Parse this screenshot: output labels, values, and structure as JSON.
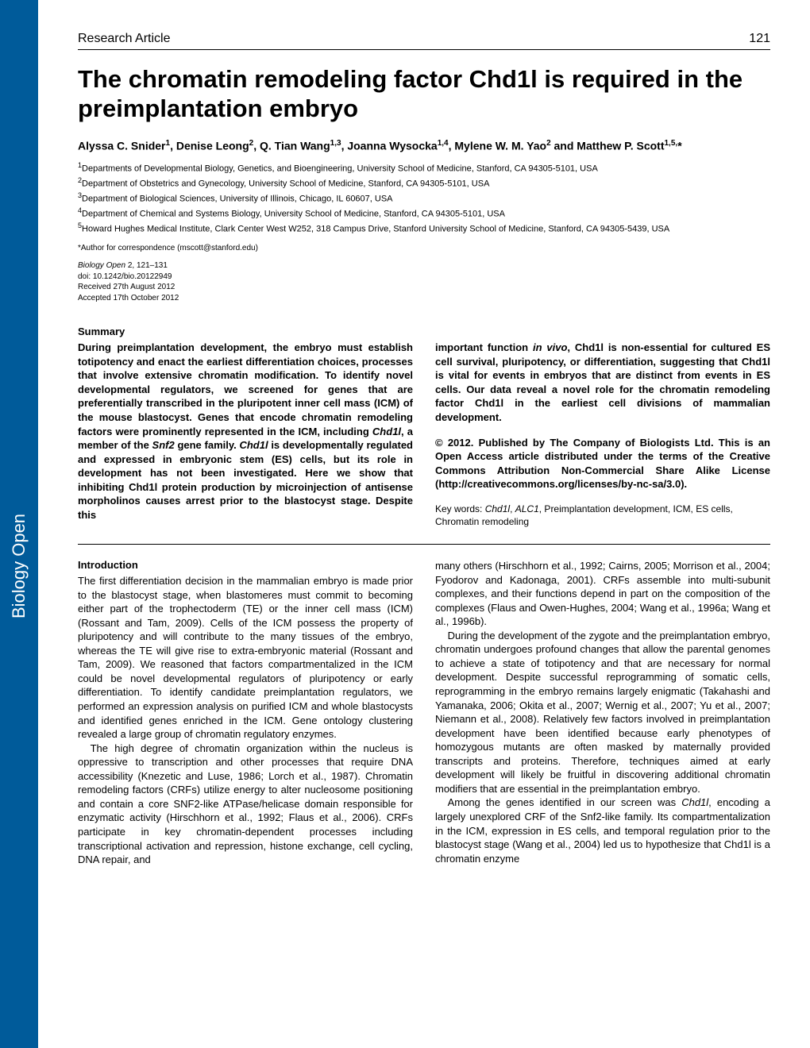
{
  "sidebar": {
    "text": "Biology Open"
  },
  "header": {
    "article_type": "Research Article",
    "page_number": "121"
  },
  "title": "The chromatin remodeling factor Chd1l is required in the preimplantation embryo",
  "authors_html": "Alyssa C. Snider<sup>1</sup>, Denise Leong<sup>2</sup>, Q. Tian Wang<sup>1,3</sup>, Joanna Wysocka<sup>1,4</sup>, Mylene W. M. Yao<sup>2</sup> and Matthew P. Scott<sup>1,5,</sup>*",
  "affiliations_html": "<sup>1</sup>Departments of Developmental Biology, Genetics, and Bioengineering, University School of Medicine, Stanford, CA 94305-5101, USA<br><sup>2</sup>Department of Obstetrics and Gynecology, University School of Medicine, Stanford, CA 94305-5101, USA<br><sup>3</sup>Department of Biological Sciences, University of Illinois, Chicago, IL 60607, USA<br><sup>4</sup>Department of Chemical and Systems Biology, University School of Medicine, Stanford, CA 94305-5101, USA<br><sup>5</sup>Howard Hughes Medical Institute, Clark Center West W252, 318 Campus Drive, Stanford University School of Medicine, Stanford, CA 94305-5439, USA",
  "corresp": "*Author for correspondence (mscott@stanford.edu)",
  "meta_html": "Biology Open <span class=\"noit\">2, 121–131</span><br><span class=\"noit\">doi: 10.1242/bio.20122949</span><br><span class=\"noit\">Received 27th August 2012</span><br><span class=\"noit\">Accepted 17th October 2012</span>",
  "summary": {
    "label": "Summary",
    "left": "During preimplantation development, the embryo must establish totipotency and enact the earliest differentiation choices, processes that involve extensive chromatin modification. To identify novel developmental regulators, we screened for genes that are preferentially transcribed in the pluripotent inner cell mass (ICM) of the mouse blastocyst. Genes that encode chromatin remodeling factors were prominently represented in the ICM, including <span class=\"ital\">Chd1l</span>, a member of the <span class=\"ital\">Snf2</span> gene family. <span class=\"ital\">Chd1l</span> is developmentally regulated and expressed in embryonic stem (ES) cells, but its role in development has not been investigated. Here we show that inhibiting Chd1l protein production by microinjection of antisense morpholinos causes arrest prior to the blastocyst stage. Despite this",
    "right_top": "important function <span class=\"ital\">in vivo</span>, Chd1l is non-essential for cultured ES cell survival, pluripotency, or differentiation, suggesting that Chd1l is vital for events in embryos that are distinct from events in ES cells. Our data reveal a novel role for the chromatin remodeling factor Chd1l in the earliest cell divisions of mammalian development.",
    "copyright": "© 2012. Published by The Company of Biologists Ltd. This is an Open Access article distributed under the terms of the Creative Commons Attribution Non-Commercial Share Alike License (http://creativecommons.org/licenses/by-nc-sa/3.0).",
    "keywords": "Key words: <span class=\"ital\">Chd1l</span>, <span class=\"ital\">ALC1</span>, Preimplantation development, ICM, ES cells, Chromatin remodeling"
  },
  "intro": {
    "label": "Introduction",
    "left_html": "<p>The first differentiation decision in the mammalian embryo is made prior to the blastocyst stage, when blastomeres must commit to becoming either part of the trophectoderm (TE) or the inner cell mass (ICM) (Rossant and Tam, 2009). Cells of the ICM possess the property of pluripotency and will contribute to the many tissues of the embryo, whereas the TE will give rise to extra-embryonic material (Rossant and Tam, 2009). We reasoned that factors compartmentalized in the ICM could be novel developmental regulators of pluripotency or early differentiation. To identify candidate preimplantation regulators, we performed an expression analysis on purified ICM and whole blastocysts and identified genes enriched in the ICM. Gene ontology clustering revealed a large group of chromatin regulatory enzymes.</p><p>The high degree of chromatin organization within the nucleus is oppressive to transcription and other processes that require DNA accessibility (Knezetic and Luse, 1986; Lorch et al., 1987). Chromatin remodeling factors (CRFs) utilize energy to alter nucleosome positioning and contain a core SNF2-like ATPase/helicase domain responsible for enzymatic activity (Hirschhorn et al., 1992; Flaus et al., 2006). CRFs participate in key chromatin-dependent processes including transcriptional activation and repression, histone exchange, cell cycling, DNA repair, and</p>",
    "right_html": "<p>many others (Hirschhorn et al., 1992; Cairns, 2005; Morrison et al., 2004; Fyodorov and Kadonaga, 2001). CRFs assemble into multi-subunit complexes, and their functions depend in part on the composition of the complexes (Flaus and Owen-Hughes, 2004; Wang et al., 1996a; Wang et al., 1996b).</p><p>During the development of the zygote and the preimplantation embryo, chromatin undergoes profound changes that allow the parental genomes to achieve a state of totipotency and that are necessary for normal development. Despite successful reprogramming of somatic cells, reprogramming in the embryo remains largely enigmatic (Takahashi and Yamanaka, 2006; Okita et al., 2007; Wernig et al., 2007; Yu et al., 2007; Niemann et al., 2008). Relatively few factors involved in preimplantation development have been identified because early phenotypes of homozygous mutants are often masked by maternally provided transcripts and proteins. Therefore, techniques aimed at early development will likely be fruitful in discovering additional chromatin modifiers that are essential in the preimplantation embryo.</p><p>Among the genes identified in our screen was <span class=\"ital\">Chd1l</span>, encoding a largely unexplored CRF of the Snf2-like family. Its compartmentalization in the ICM, expression in ES cells, and temporal regulation prior to the blastocyst stage (Wang et al., 2004) led us to hypothesize that Chd1l is a chromatin enzyme</p>"
  },
  "colors": {
    "sidebar": "#005b9a",
    "text": "#000000",
    "background": "#ffffff"
  }
}
